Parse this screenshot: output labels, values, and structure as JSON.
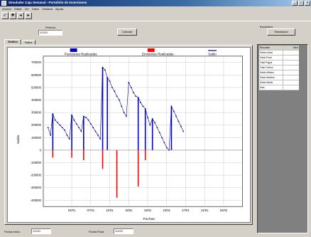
{
  "window": {
    "title": "Simulador Caja Semanal - Portafolio de Inversiones"
  },
  "menu": [
    "Archivo",
    "Editar",
    "Ver",
    "Datos",
    "Ventana",
    "Ayuda"
  ],
  "toolbar": [
    "✓",
    "✚",
    "◂",
    "▸"
  ],
  "period": {
    "label": "Periodo:",
    "value": "1/1/01"
  },
  "calc_button": "Calcular",
  "right_top": {
    "label": "Escenario:",
    "button": "Simulacion"
  },
  "tabs": [
    "Grafico",
    "Datos"
  ],
  "grid": {
    "header": [
      "Resumen",
      "Valor"
    ],
    "rows": [
      [
        "Saldo Inicial",
        ""
      ],
      [
        "Saldo Final",
        ""
      ],
      [
        "Total Pagos",
        ""
      ],
      [
        "Total Cobros",
        ""
      ],
      [
        "Saldo Minimo",
        ""
      ],
      [
        "Saldo Maximo",
        ""
      ],
      [
        "Saldo Medio",
        ""
      ],
      [
        "Dias",
        ""
      ]
    ]
  },
  "bottom": {
    "from_label": "Fecha Inicio:",
    "from_value": "1/1/01",
    "to_label": "Fecha Final:",
    "to_value": "1/1/01"
  },
  "chart_data": {
    "type": "bar",
    "title": "",
    "xlabel": "Fechas",
    "ylabel": "Saldo",
    "ylim": [
      -450000,
      750000
    ],
    "yticks": [
      700000,
      600000,
      500000,
      400000,
      300000,
      200000,
      100000,
      0,
      -100000,
      -200000,
      -300000,
      -400000
    ],
    "ytick_labels": [
      "700000",
      "600000",
      "500000",
      "400000",
      "300000",
      "200000",
      "100000",
      "0",
      "-100000",
      "-200000",
      "-300000",
      "-400000"
    ],
    "xlim": [
      0,
      42
    ],
    "xtick_positions": [
      6,
      10,
      14,
      18,
      22,
      26,
      30,
      34,
      38
    ],
    "xtick_labels": [
      "03/01",
      "07/01",
      "11/01",
      "15/01",
      "19/01",
      "23/01",
      "27/01",
      "31/01",
      "04/02"
    ],
    "legend": [
      "Posiciones Realizadas",
      "Emisiones Realizadas",
      "Saldo"
    ],
    "series": [
      {
        "name": "Posiciones Realizadas",
        "color": "#0000cc",
        "points": [
          {
            "x": 2,
            "y": 290000
          },
          {
            "x": 6,
            "y": 280000
          },
          {
            "x": 8.5,
            "y": 270000
          },
          {
            "x": 12.5,
            "y": 660000
          },
          {
            "x": 13.5,
            "y": 580000
          },
          {
            "x": 20,
            "y": 420000
          },
          {
            "x": 21.5,
            "y": 330000
          },
          {
            "x": 23,
            "y": 250000
          },
          {
            "x": 27,
            "y": 350000
          }
        ]
      },
      {
        "name": "Emisiones Realizadas",
        "color": "#ff0000",
        "points": [
          {
            "x": 2,
            "y": -60000
          },
          {
            "x": 6,
            "y": -60000
          },
          {
            "x": 8.5,
            "y": -80000
          },
          {
            "x": 12.5,
            "y": -150000
          },
          {
            "x": 15.5,
            "y": -380000
          },
          {
            "x": 20,
            "y": -290000
          },
          {
            "x": 21.5,
            "y": -80000
          }
        ]
      },
      {
        "name": "Saldo",
        "color": "#000080",
        "points": [
          {
            "x": 1,
            "y": 180000
          },
          {
            "x": 1.5,
            "y": 120000
          },
          {
            "x": 2,
            "y": 290000
          },
          {
            "x": 2.5,
            "y": 240000
          },
          {
            "x": 3,
            "y": 220000
          },
          {
            "x": 3.5,
            "y": 200000
          },
          {
            "x": 4,
            "y": 180000
          },
          {
            "x": 4.5,
            "y": 160000
          },
          {
            "x": 5,
            "y": 120000
          },
          {
            "x": 5.5,
            "y": 90000
          },
          {
            "x": 6,
            "y": 280000
          },
          {
            "x": 6.5,
            "y": 240000
          },
          {
            "x": 7,
            "y": 210000
          },
          {
            "x": 7.5,
            "y": 180000
          },
          {
            "x": 8,
            "y": 150000
          },
          {
            "x": 8.5,
            "y": 270000
          },
          {
            "x": 9,
            "y": 260000
          },
          {
            "x": 9.5,
            "y": 240000
          },
          {
            "x": 10,
            "y": 210000
          },
          {
            "x": 10.5,
            "y": 180000
          },
          {
            "x": 11,
            "y": 150000
          },
          {
            "x": 11.5,
            "y": 120000
          },
          {
            "x": 12,
            "y": 90000
          },
          {
            "x": 12.5,
            "y": 660000
          },
          {
            "x": 13,
            "y": 640000
          },
          {
            "x": 13.5,
            "y": 580000
          },
          {
            "x": 14,
            "y": 550000
          },
          {
            "x": 14.5,
            "y": 500000
          },
          {
            "x": 15,
            "y": 470000
          },
          {
            "x": 15.5,
            "y": 430000
          },
          {
            "x": 16,
            "y": 400000
          },
          {
            "x": 16.5,
            "y": 350000
          },
          {
            "x": 17,
            "y": 300000
          },
          {
            "x": 17.5,
            "y": 270000
          },
          {
            "x": 18,
            "y": 540000
          },
          {
            "x": 18.5,
            "y": 500000
          },
          {
            "x": 19,
            "y": 460000
          },
          {
            "x": 19.5,
            "y": 430000
          },
          {
            "x": 20,
            "y": 420000
          },
          {
            "x": 20.5,
            "y": 380000
          },
          {
            "x": 21,
            "y": 350000
          },
          {
            "x": 21.5,
            "y": 330000
          },
          {
            "x": 22,
            "y": 260000
          },
          {
            "x": 22.5,
            "y": 200000
          },
          {
            "x": 23,
            "y": 250000
          },
          {
            "x": 23.5,
            "y": 220000
          },
          {
            "x": 24,
            "y": 180000
          },
          {
            "x": 24.5,
            "y": 140000
          },
          {
            "x": 25,
            "y": 100000
          },
          {
            "x": 25.5,
            "y": 60000
          },
          {
            "x": 26,
            "y": 20000
          },
          {
            "x": 26.5,
            "y": 0
          },
          {
            "x": 27,
            "y": 350000
          },
          {
            "x": 27.5,
            "y": 310000
          },
          {
            "x": 28,
            "y": 270000
          },
          {
            "x": 28.5,
            "y": 230000
          },
          {
            "x": 29,
            "y": 190000
          },
          {
            "x": 29.5,
            "y": 150000
          }
        ]
      }
    ]
  }
}
